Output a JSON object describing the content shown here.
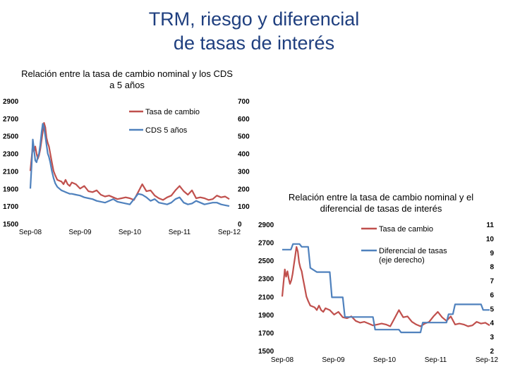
{
  "title": {
    "line1": "TRM, riesgo y diferencial",
    "line2": "de tasas de interés"
  },
  "colors": {
    "title": "#1f3f7f",
    "trm": "#c0504d",
    "cds": "#4f81bd"
  },
  "chart_data": [
    {
      "type": "line",
      "title": "Relación entre la tasa de cambio nominal y los CDS a 5 años",
      "x_ticks": [
        "Sep-08",
        "Sep-09",
        "Sep-10",
        "Sep-11",
        "Sep-12"
      ],
      "y_left_ticks": [
        "2900",
        "2700",
        "2500",
        "2300",
        "2100",
        "1900",
        "1700",
        "1500"
      ],
      "y_right_ticks": [
        "700",
        "600",
        "500",
        "400",
        "300",
        "200",
        "100",
        "0"
      ],
      "ylim_left": [
        1500,
        2900
      ],
      "ylim_right": [
        0,
        700
      ],
      "legend_position": "top-right",
      "series": [
        {
          "name": "Tasa de cambio",
          "axis": "left",
          "color": "#c0504d",
          "x": [
            0,
            0.3,
            0.6,
            0.9,
            1.2,
            1.5,
            1.8,
            2.1,
            2.4,
            2.7,
            3,
            3.3,
            3.6,
            3.9,
            4.2,
            4.5,
            4.8,
            5.2,
            5.6,
            6,
            6.5,
            7,
            7.5,
            8,
            8.5,
            9,
            9.5,
            10,
            11,
            12,
            13,
            14,
            15,
            16,
            17,
            18,
            19,
            20,
            21,
            22,
            23,
            24,
            25,
            26,
            27,
            28,
            29,
            30,
            31,
            32,
            33,
            34,
            35,
            36,
            37,
            38,
            39,
            40,
            41,
            42,
            43,
            44,
            45,
            46,
            47,
            48
          ],
          "values": [
            2100,
            2250,
            2400,
            2320,
            2380,
            2300,
            2240,
            2280,
            2350,
            2450,
            2550,
            2650,
            2600,
            2480,
            2420,
            2380,
            2300,
            2200,
            2100,
            2050,
            2000,
            1990,
            1980,
            1950,
            2000,
            1950,
            1930,
            1970,
            1950,
            1900,
            1930,
            1870,
            1860,
            1880,
            1830,
            1810,
            1820,
            1800,
            1780,
            1790,
            1800,
            1790,
            1770,
            1860,
            1950,
            1870,
            1880,
            1820,
            1790,
            1770,
            1800,
            1820,
            1880,
            1930,
            1870,
            1830,
            1880,
            1790,
            1800,
            1790,
            1770,
            1780,
            1820,
            1800,
            1810,
            1780
          ]
        },
        {
          "name": "CDS 5 años",
          "axis": "right",
          "color": "#4f81bd",
          "x": [
            0,
            0.3,
            0.6,
            0.9,
            1.2,
            1.5,
            1.8,
            2.1,
            2.4,
            2.7,
            3,
            3.3,
            3.6,
            3.9,
            4.2,
            4.5,
            4.8,
            5.2,
            5.6,
            6,
            6.5,
            7,
            7.5,
            8,
            8.5,
            9,
            9.5,
            10,
            11,
            12,
            13,
            14,
            15,
            16,
            17,
            18,
            19,
            20,
            21,
            22,
            23,
            24,
            25,
            26,
            27,
            28,
            29,
            30,
            31,
            32,
            33,
            34,
            35,
            36,
            37,
            38,
            39,
            40,
            41,
            42,
            43,
            44,
            45,
            46,
            47,
            48
          ],
          "values": [
            200,
            330,
            480,
            420,
            360,
            350,
            380,
            400,
            450,
            520,
            570,
            550,
            500,
            450,
            400,
            380,
            350,
            300,
            260,
            230,
            210,
            200,
            190,
            185,
            180,
            175,
            170,
            170,
            165,
            160,
            150,
            145,
            140,
            130,
            125,
            120,
            130,
            140,
            125,
            120,
            115,
            110,
            140,
            170,
            165,
            150,
            130,
            140,
            120,
            115,
            110,
            120,
            140,
            150,
            120,
            110,
            115,
            130,
            120,
            110,
            115,
            120,
            120,
            110,
            105,
            100
          ]
        }
      ]
    },
    {
      "type": "line",
      "title": "Relación entre la tasa de cambio nominal y el diferencial de tasas de interés",
      "x_ticks": [
        "Sep-08",
        "Sep-09",
        "Sep-10",
        "Sep-11",
        "Sep-12"
      ],
      "y_left_ticks": [
        "2900",
        "2700",
        "2500",
        "2300",
        "2100",
        "1900",
        "1700",
        "1500"
      ],
      "y_right_ticks": [
        "11",
        "10",
        "9",
        "8",
        "7",
        "6",
        "5",
        "4",
        "3",
        "2"
      ],
      "ylim_left": [
        1500,
        2900
      ],
      "ylim_right": [
        2,
        11
      ],
      "legend_position": "top-right",
      "series": [
        {
          "name": "Tasa de cambio",
          "axis": "left",
          "color": "#c0504d",
          "x": [
            0,
            0.3,
            0.6,
            0.9,
            1.2,
            1.5,
            1.8,
            2.1,
            2.4,
            2.7,
            3,
            3.3,
            3.6,
            3.9,
            4.2,
            4.5,
            4.8,
            5.2,
            5.6,
            6,
            6.5,
            7,
            7.5,
            8,
            8.5,
            9,
            9.5,
            10,
            11,
            12,
            13,
            14,
            15,
            16,
            17,
            18,
            19,
            20,
            21,
            22,
            23,
            24,
            25,
            26,
            27,
            28,
            29,
            30,
            31,
            32,
            33,
            34,
            35,
            36,
            37,
            38,
            39,
            40,
            41,
            42,
            43,
            44,
            45,
            46,
            47,
            48
          ],
          "values": [
            2100,
            2250,
            2400,
            2320,
            2380,
            2300,
            2240,
            2280,
            2350,
            2450,
            2550,
            2650,
            2600,
            2480,
            2420,
            2380,
            2300,
            2200,
            2100,
            2050,
            2000,
            1990,
            1980,
            1950,
            2000,
            1950,
            1930,
            1970,
            1950,
            1900,
            1930,
            1870,
            1860,
            1880,
            1830,
            1810,
            1820,
            1800,
            1780,
            1790,
            1800,
            1790,
            1770,
            1860,
            1950,
            1870,
            1880,
            1820,
            1790,
            1770,
            1800,
            1820,
            1880,
            1930,
            1870,
            1830,
            1880,
            1790,
            1800,
            1790,
            1770,
            1780,
            1820,
            1800,
            1810,
            1780
          ]
        },
        {
          "name": "Diferencial de tasas (eje derecho)",
          "axis": "right",
          "color": "#4f81bd",
          "x": [
            0,
            2,
            2.5,
            4,
            4.5,
            6,
            6.5,
            8,
            11,
            11.5,
            14,
            14.5,
            21,
            21.5,
            27,
            27.5,
            32,
            32.5,
            38,
            38.5,
            39.5,
            40,
            46,
            46.5,
            48
          ],
          "values": [
            9.2,
            9.2,
            9.6,
            9.6,
            9.4,
            9.4,
            7.9,
            7.6,
            7.6,
            5.8,
            5.8,
            4.4,
            4.4,
            3.5,
            3.5,
            3.3,
            3.3,
            4.0,
            4.0,
            4.6,
            4.6,
            5.3,
            5.3,
            4.9,
            4.9
          ]
        }
      ]
    }
  ]
}
